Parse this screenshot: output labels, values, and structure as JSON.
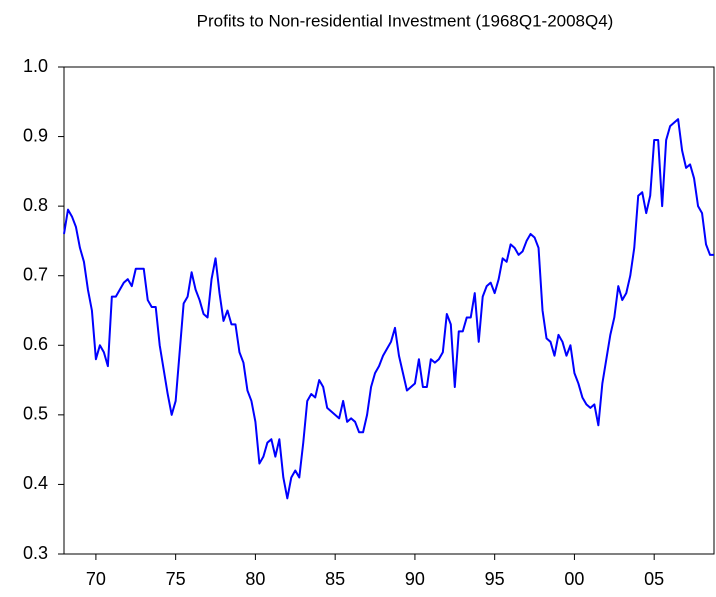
{
  "chart_data": {
    "type": "line",
    "title": "Profits to Non-residential Investment (1968Q1-2008Q4)",
    "color": "#0000ff",
    "x": [
      1968,
      1968.25,
      1968.5,
      1968.75,
      1969,
      1969.25,
      1969.5,
      1969.75,
      1970,
      1970.25,
      1970.5,
      1970.75,
      1971,
      1971.25,
      1971.5,
      1971.75,
      1972,
      1972.25,
      1972.5,
      1972.75,
      1973,
      1973.25,
      1973.5,
      1973.75,
      1974,
      1974.25,
      1974.5,
      1974.75,
      1975,
      1975.25,
      1975.5,
      1975.75,
      1976,
      1976.25,
      1976.5,
      1976.75,
      1977,
      1977.25,
      1977.5,
      1977.75,
      1978,
      1978.25,
      1978.5,
      1978.75,
      1979,
      1979.25,
      1979.5,
      1979.75,
      1980,
      1980.25,
      1980.5,
      1980.75,
      1981,
      1981.25,
      1981.5,
      1981.75,
      1982,
      1982.25,
      1982.5,
      1982.75,
      1983,
      1983.25,
      1983.5,
      1983.75,
      1984,
      1984.25,
      1984.5,
      1984.75,
      1985,
      1985.25,
      1985.5,
      1985.75,
      1986,
      1986.25,
      1986.5,
      1986.75,
      1987,
      1987.25,
      1987.5,
      1987.75,
      1988,
      1988.25,
      1988.5,
      1988.75,
      1989,
      1989.25,
      1989.5,
      1989.75,
      1990,
      1990.25,
      1990.5,
      1990.75,
      1991,
      1991.25,
      1991.5,
      1991.75,
      1992,
      1992.25,
      1992.5,
      1992.75,
      1993,
      1993.25,
      1993.5,
      1993.75,
      1994,
      1994.25,
      1994.5,
      1994.75,
      1995,
      1995.25,
      1995.5,
      1995.75,
      1996,
      1996.25,
      1996.5,
      1996.75,
      1997,
      1997.25,
      1997.5,
      1997.75,
      1998,
      1998.25,
      1998.5,
      1998.75,
      1999,
      1999.25,
      1999.5,
      1999.75,
      2000,
      2000.25,
      2000.5,
      2000.75,
      2001,
      2001.25,
      2001.5,
      2001.75,
      2002,
      2002.25,
      2002.5,
      2002.75,
      2003,
      2003.25,
      2003.5,
      2003.75,
      2004,
      2004.25,
      2004.5,
      2004.75,
      2005,
      2005.25,
      2005.5,
      2005.75,
      2006,
      2006.25,
      2006.5,
      2006.75,
      2007,
      2007.25,
      2007.5,
      2007.75,
      2008,
      2008.25,
      2008.5,
      2008.75
    ],
    "values": [
      0.76,
      0.795,
      0.785,
      0.77,
      0.74,
      0.72,
      0.68,
      0.65,
      0.58,
      0.6,
      0.59,
      0.57,
      0.67,
      0.67,
      0.68,
      0.69,
      0.695,
      0.685,
      0.71,
      0.71,
      0.71,
      0.665,
      0.655,
      0.655,
      0.6,
      0.565,
      0.53,
      0.5,
      0.52,
      0.59,
      0.66,
      0.67,
      0.705,
      0.68,
      0.665,
      0.645,
      0.64,
      0.695,
      0.725,
      0.675,
      0.635,
      0.65,
      0.63,
      0.63,
      0.59,
      0.575,
      0.535,
      0.52,
      0.49,
      0.43,
      0.44,
      0.46,
      0.465,
      0.44,
      0.465,
      0.41,
      0.38,
      0.41,
      0.42,
      0.41,
      0.46,
      0.52,
      0.53,
      0.525,
      0.55,
      0.54,
      0.51,
      0.505,
      0.5,
      0.495,
      0.52,
      0.49,
      0.495,
      0.49,
      0.475,
      0.475,
      0.5,
      0.54,
      0.56,
      0.57,
      0.585,
      0.595,
      0.605,
      0.625,
      0.585,
      0.56,
      0.535,
      0.54,
      0.545,
      0.58,
      0.54,
      0.54,
      0.58,
      0.575,
      0.58,
      0.59,
      0.645,
      0.63,
      0.54,
      0.62,
      0.62,
      0.64,
      0.64,
      0.675,
      0.605,
      0.67,
      0.685,
      0.69,
      0.675,
      0.695,
      0.725,
      0.72,
      0.745,
      0.74,
      0.73,
      0.735,
      0.75,
      0.76,
      0.755,
      0.74,
      0.65,
      0.61,
      0.605,
      0.585,
      0.615,
      0.605,
      0.585,
      0.6,
      0.56,
      0.545,
      0.525,
      0.515,
      0.51,
      0.515,
      0.485,
      0.545,
      0.58,
      0.615,
      0.64,
      0.685,
      0.665,
      0.675,
      0.7,
      0.74,
      0.815,
      0.82,
      0.79,
      0.815,
      0.895,
      0.895,
      0.8,
      0.895,
      0.915,
      0.92,
      0.925,
      0.88,
      0.855,
      0.86,
      0.84,
      0.8,
      0.79,
      0.745,
      0.73,
      0.73
    ],
    "xlim": [
      1968,
      2008.75
    ],
    "xticks": [
      {
        "value": 1970,
        "label": "70"
      },
      {
        "value": 1975,
        "label": "75"
      },
      {
        "value": 1980,
        "label": "80"
      },
      {
        "value": 1985,
        "label": "85"
      },
      {
        "value": 1990,
        "label": "90"
      },
      {
        "value": 1995,
        "label": "95"
      },
      {
        "value": 2000,
        "label": "00"
      },
      {
        "value": 2005,
        "label": "05"
      }
    ],
    "ylim": [
      0.3,
      1
    ],
    "yticks": [
      0.3,
      0.4,
      0.5,
      0.6,
      0.7,
      0.8,
      0.9,
      {
        "value": 1,
        "label": "1.0"
      }
    ]
  }
}
